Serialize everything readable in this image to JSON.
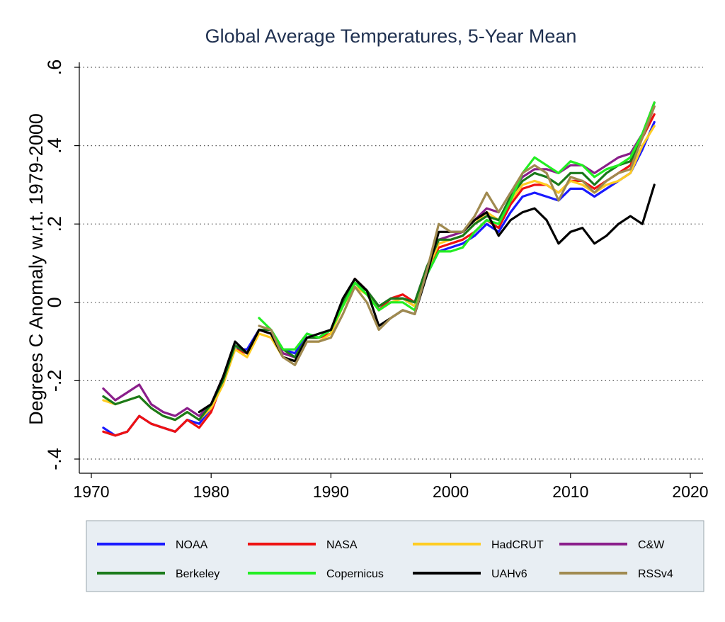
{
  "chart_data": {
    "type": "line",
    "title": "Global Average Temperatures, 5-Year Mean",
    "xlabel": "",
    "ylabel": "Degrees C Anomaly w.r.t. 1979-2000",
    "xlim": [
      1970,
      2021
    ],
    "ylim": [
      -0.4,
      0.6
    ],
    "x_ticks": [
      1970,
      1980,
      1990,
      2000,
      2010,
      2020
    ],
    "y_ticks": [
      -0.4,
      -0.2,
      0,
      0.2,
      0.4,
      0.6
    ],
    "y_tick_labels": [
      "-.4",
      "-.2",
      "0",
      ".2",
      ".4",
      ".6"
    ],
    "grid": "horizontal dotted",
    "legend_position": "bottom",
    "series": [
      {
        "name": "NOAA",
        "color": "#1a1aff",
        "x": [
          1971,
          1972,
          1973,
          1974,
          1975,
          1976,
          1977,
          1978,
          1979,
          1980,
          1981,
          1982,
          1983,
          1984,
          1985,
          1986,
          1987,
          1988,
          1989,
          1990,
          1991,
          1992,
          1993,
          1994,
          1995,
          1996,
          1997,
          1998,
          1999,
          2000,
          2001,
          2002,
          2003,
          2004,
          2005,
          2006,
          2007,
          2008,
          2009,
          2010,
          2011,
          2012,
          2013,
          2014,
          2015,
          2016,
          2017
        ],
        "y": [
          -0.32,
          -0.34,
          -0.33,
          -0.29,
          -0.31,
          -0.32,
          -0.33,
          -0.3,
          -0.31,
          -0.27,
          -0.2,
          -0.12,
          -0.12,
          -0.07,
          -0.08,
          -0.12,
          -0.13,
          -0.08,
          -0.09,
          -0.07,
          -0.01,
          0.05,
          0.03,
          -0.02,
          0.01,
          0.01,
          -0.01,
          0.07,
          0.13,
          0.14,
          0.15,
          0.17,
          0.2,
          0.18,
          0.23,
          0.27,
          0.28,
          0.27,
          0.26,
          0.29,
          0.29,
          0.27,
          0.29,
          0.31,
          0.33,
          0.39,
          0.46
        ]
      },
      {
        "name": "NASA",
        "color": "#ee1111",
        "x": [
          1971,
          1972,
          1973,
          1974,
          1975,
          1976,
          1977,
          1978,
          1979,
          1980,
          1981,
          1982,
          1983,
          1984,
          1985,
          1986,
          1987,
          1988,
          1989,
          1990,
          1991,
          1992,
          1993,
          1994,
          1995,
          1996,
          1997,
          1998,
          1999,
          2000,
          2001,
          2002,
          2003,
          2004,
          2005,
          2006,
          2007,
          2008,
          2009,
          2010,
          2011,
          2012,
          2013,
          2014,
          2015,
          2016,
          2017
        ],
        "y": [
          -0.33,
          -0.34,
          -0.33,
          -0.29,
          -0.31,
          -0.32,
          -0.33,
          -0.3,
          -0.32,
          -0.28,
          -0.2,
          -0.12,
          -0.13,
          -0.07,
          -0.08,
          -0.13,
          -0.14,
          -0.09,
          -0.09,
          -0.08,
          0.0,
          0.06,
          0.03,
          -0.02,
          0.01,
          0.02,
          0.0,
          0.08,
          0.14,
          0.15,
          0.16,
          0.18,
          0.21,
          0.19,
          0.25,
          0.29,
          0.3,
          0.3,
          0.28,
          0.31,
          0.31,
          0.29,
          0.31,
          0.33,
          0.35,
          0.42,
          0.48
        ]
      },
      {
        "name": "HadCRUT",
        "color": "#ffcc22",
        "x": [
          1971,
          1972,
          1973,
          1974,
          1975,
          1976,
          1977,
          1978,
          1979,
          1980,
          1981,
          1982,
          1983,
          1984,
          1985,
          1986,
          1987,
          1988,
          1989,
          1990,
          1991,
          1992,
          1993,
          1994,
          1995,
          1996,
          1997,
          1998,
          1999,
          2000,
          2001,
          2002,
          2003,
          2004,
          2005,
          2006,
          2007,
          2008,
          2009,
          2010,
          2011,
          2012,
          2013,
          2014,
          2015,
          2016,
          2017
        ],
        "y": [
          -0.25,
          -0.26,
          -0.25,
          -0.24,
          -0.27,
          -0.29,
          -0.3,
          -0.28,
          -0.3,
          -0.27,
          -0.21,
          -0.12,
          -0.14,
          -0.08,
          -0.09,
          -0.14,
          -0.15,
          -0.1,
          -0.1,
          -0.08,
          -0.01,
          0.04,
          0.02,
          -0.02,
          0.0,
          0.01,
          -0.01,
          0.08,
          0.15,
          0.16,
          0.17,
          0.2,
          0.23,
          0.21,
          0.26,
          0.3,
          0.31,
          0.3,
          0.28,
          0.31,
          0.3,
          0.28,
          0.3,
          0.31,
          0.33,
          0.4,
          0.45
        ]
      },
      {
        "name": "C&W",
        "color": "#8a1e8a",
        "x": [
          1971,
          1972,
          1973,
          1974,
          1975,
          1976,
          1977,
          1978,
          1979,
          1980,
          1981,
          1982,
          1983,
          1984,
          1985,
          1986,
          1987,
          1988,
          1989,
          1990,
          1991,
          1992,
          1993,
          1994,
          1995,
          1996,
          1997,
          1998,
          1999,
          2000,
          2001,
          2002,
          2003,
          2004,
          2005,
          2006,
          2007,
          2008,
          2009,
          2010,
          2011,
          2012,
          2013,
          2014,
          2015,
          2016,
          2017
        ],
        "y": [
          -0.22,
          -0.25,
          -0.23,
          -0.21,
          -0.26,
          -0.28,
          -0.29,
          -0.27,
          -0.29,
          -0.26,
          -0.19,
          -0.11,
          -0.13,
          -0.07,
          -0.08,
          -0.13,
          -0.14,
          -0.09,
          -0.09,
          -0.07,
          0.0,
          0.05,
          0.03,
          -0.01,
          0.01,
          0.01,
          0.0,
          0.09,
          0.16,
          0.17,
          0.18,
          0.21,
          0.24,
          0.23,
          0.28,
          0.32,
          0.34,
          0.34,
          0.33,
          0.35,
          0.35,
          0.33,
          0.35,
          0.37,
          0.38,
          0.43,
          0.51
        ]
      },
      {
        "name": "Berkeley",
        "color": "#1a7a1a",
        "x": [
          1971,
          1972,
          1973,
          1974,
          1975,
          1976,
          1977,
          1978,
          1979,
          1980,
          1981,
          1982,
          1983,
          1984,
          1985,
          1986,
          1987,
          1988,
          1989,
          1990,
          1991,
          1992,
          1993,
          1994,
          1995,
          1996,
          1997,
          1998,
          1999,
          2000,
          2001,
          2002,
          2003,
          2004,
          2005,
          2006,
          2007,
          2008,
          2009,
          2010,
          2011,
          2012,
          2013,
          2014,
          2015,
          2016,
          2017
        ],
        "y": [
          -0.24,
          -0.26,
          -0.25,
          -0.24,
          -0.27,
          -0.29,
          -0.3,
          -0.28,
          -0.3,
          -0.26,
          -0.2,
          -0.11,
          -0.13,
          -0.07,
          -0.07,
          -0.12,
          -0.14,
          -0.09,
          -0.09,
          -0.07,
          0.0,
          0.05,
          0.03,
          -0.01,
          0.01,
          0.01,
          0.0,
          0.09,
          0.16,
          0.16,
          0.17,
          0.2,
          0.22,
          0.21,
          0.27,
          0.31,
          0.33,
          0.32,
          0.3,
          0.33,
          0.33,
          0.3,
          0.33,
          0.35,
          0.36,
          0.42,
          0.5
        ]
      },
      {
        "name": "Copernicus",
        "color": "#22ee22",
        "x": [
          1984,
          1985,
          1986,
          1987,
          1988,
          1989,
          1990,
          1991,
          1992,
          1993,
          1994,
          1995,
          1996,
          1997,
          1998,
          1999,
          2000,
          2001,
          2002,
          2003,
          2004,
          2005,
          2006,
          2007,
          2008,
          2009,
          2010,
          2011,
          2012,
          2013,
          2014,
          2015,
          2016,
          2017
        ],
        "y": [
          -0.04,
          -0.07,
          -0.12,
          -0.12,
          -0.08,
          -0.09,
          -0.07,
          -0.01,
          0.05,
          0.02,
          -0.02,
          0.0,
          0.0,
          -0.02,
          0.07,
          0.13,
          0.13,
          0.14,
          0.18,
          0.21,
          0.2,
          0.26,
          0.33,
          0.37,
          0.35,
          0.33,
          0.36,
          0.35,
          0.32,
          0.34,
          0.35,
          0.37,
          0.43,
          0.51
        ]
      },
      {
        "name": "UAHv6",
        "color": "#000000",
        "x": [
          1979,
          1980,
          1981,
          1982,
          1983,
          1984,
          1985,
          1986,
          1987,
          1988,
          1989,
          1990,
          1991,
          1992,
          1993,
          1994,
          1995,
          1996,
          1997,
          1998,
          1999,
          2000,
          2001,
          2002,
          2003,
          2004,
          2005,
          2006,
          2007,
          2008,
          2009,
          2010,
          2011,
          2012,
          2013,
          2014,
          2015,
          2016,
          2017
        ],
        "y": [
          -0.28,
          -0.26,
          -0.19,
          -0.1,
          -0.13,
          -0.07,
          -0.08,
          -0.14,
          -0.15,
          -0.09,
          -0.08,
          -0.07,
          0.01,
          0.06,
          0.03,
          -0.06,
          -0.04,
          -0.02,
          -0.03,
          0.07,
          0.18,
          0.18,
          0.18,
          0.21,
          0.23,
          0.17,
          0.21,
          0.23,
          0.24,
          0.21,
          0.15,
          0.18,
          0.19,
          0.15,
          0.17,
          0.2,
          0.22,
          0.2,
          0.3
        ]
      },
      {
        "name": "RSSv4",
        "color": "#a08a50",
        "x": [
          1984,
          1985,
          1986,
          1987,
          1988,
          1989,
          1990,
          1991,
          1992,
          1993,
          1994,
          1995,
          1996,
          1997,
          1998,
          1999,
          2000,
          2001,
          2002,
          2003,
          2004,
          2005,
          2006,
          2007,
          2008,
          2009,
          2010,
          2011,
          2012,
          2013,
          2014,
          2015,
          2016,
          2017
        ],
        "y": [
          -0.06,
          -0.07,
          -0.14,
          -0.16,
          -0.1,
          -0.1,
          -0.09,
          -0.03,
          0.04,
          0.0,
          -0.07,
          -0.04,
          -0.02,
          -0.03,
          0.08,
          0.2,
          0.18,
          0.18,
          0.22,
          0.28,
          0.23,
          0.28,
          0.33,
          0.35,
          0.33,
          0.26,
          0.32,
          0.31,
          0.28,
          0.31,
          0.33,
          0.34,
          0.42,
          0.5
        ]
      }
    ]
  }
}
